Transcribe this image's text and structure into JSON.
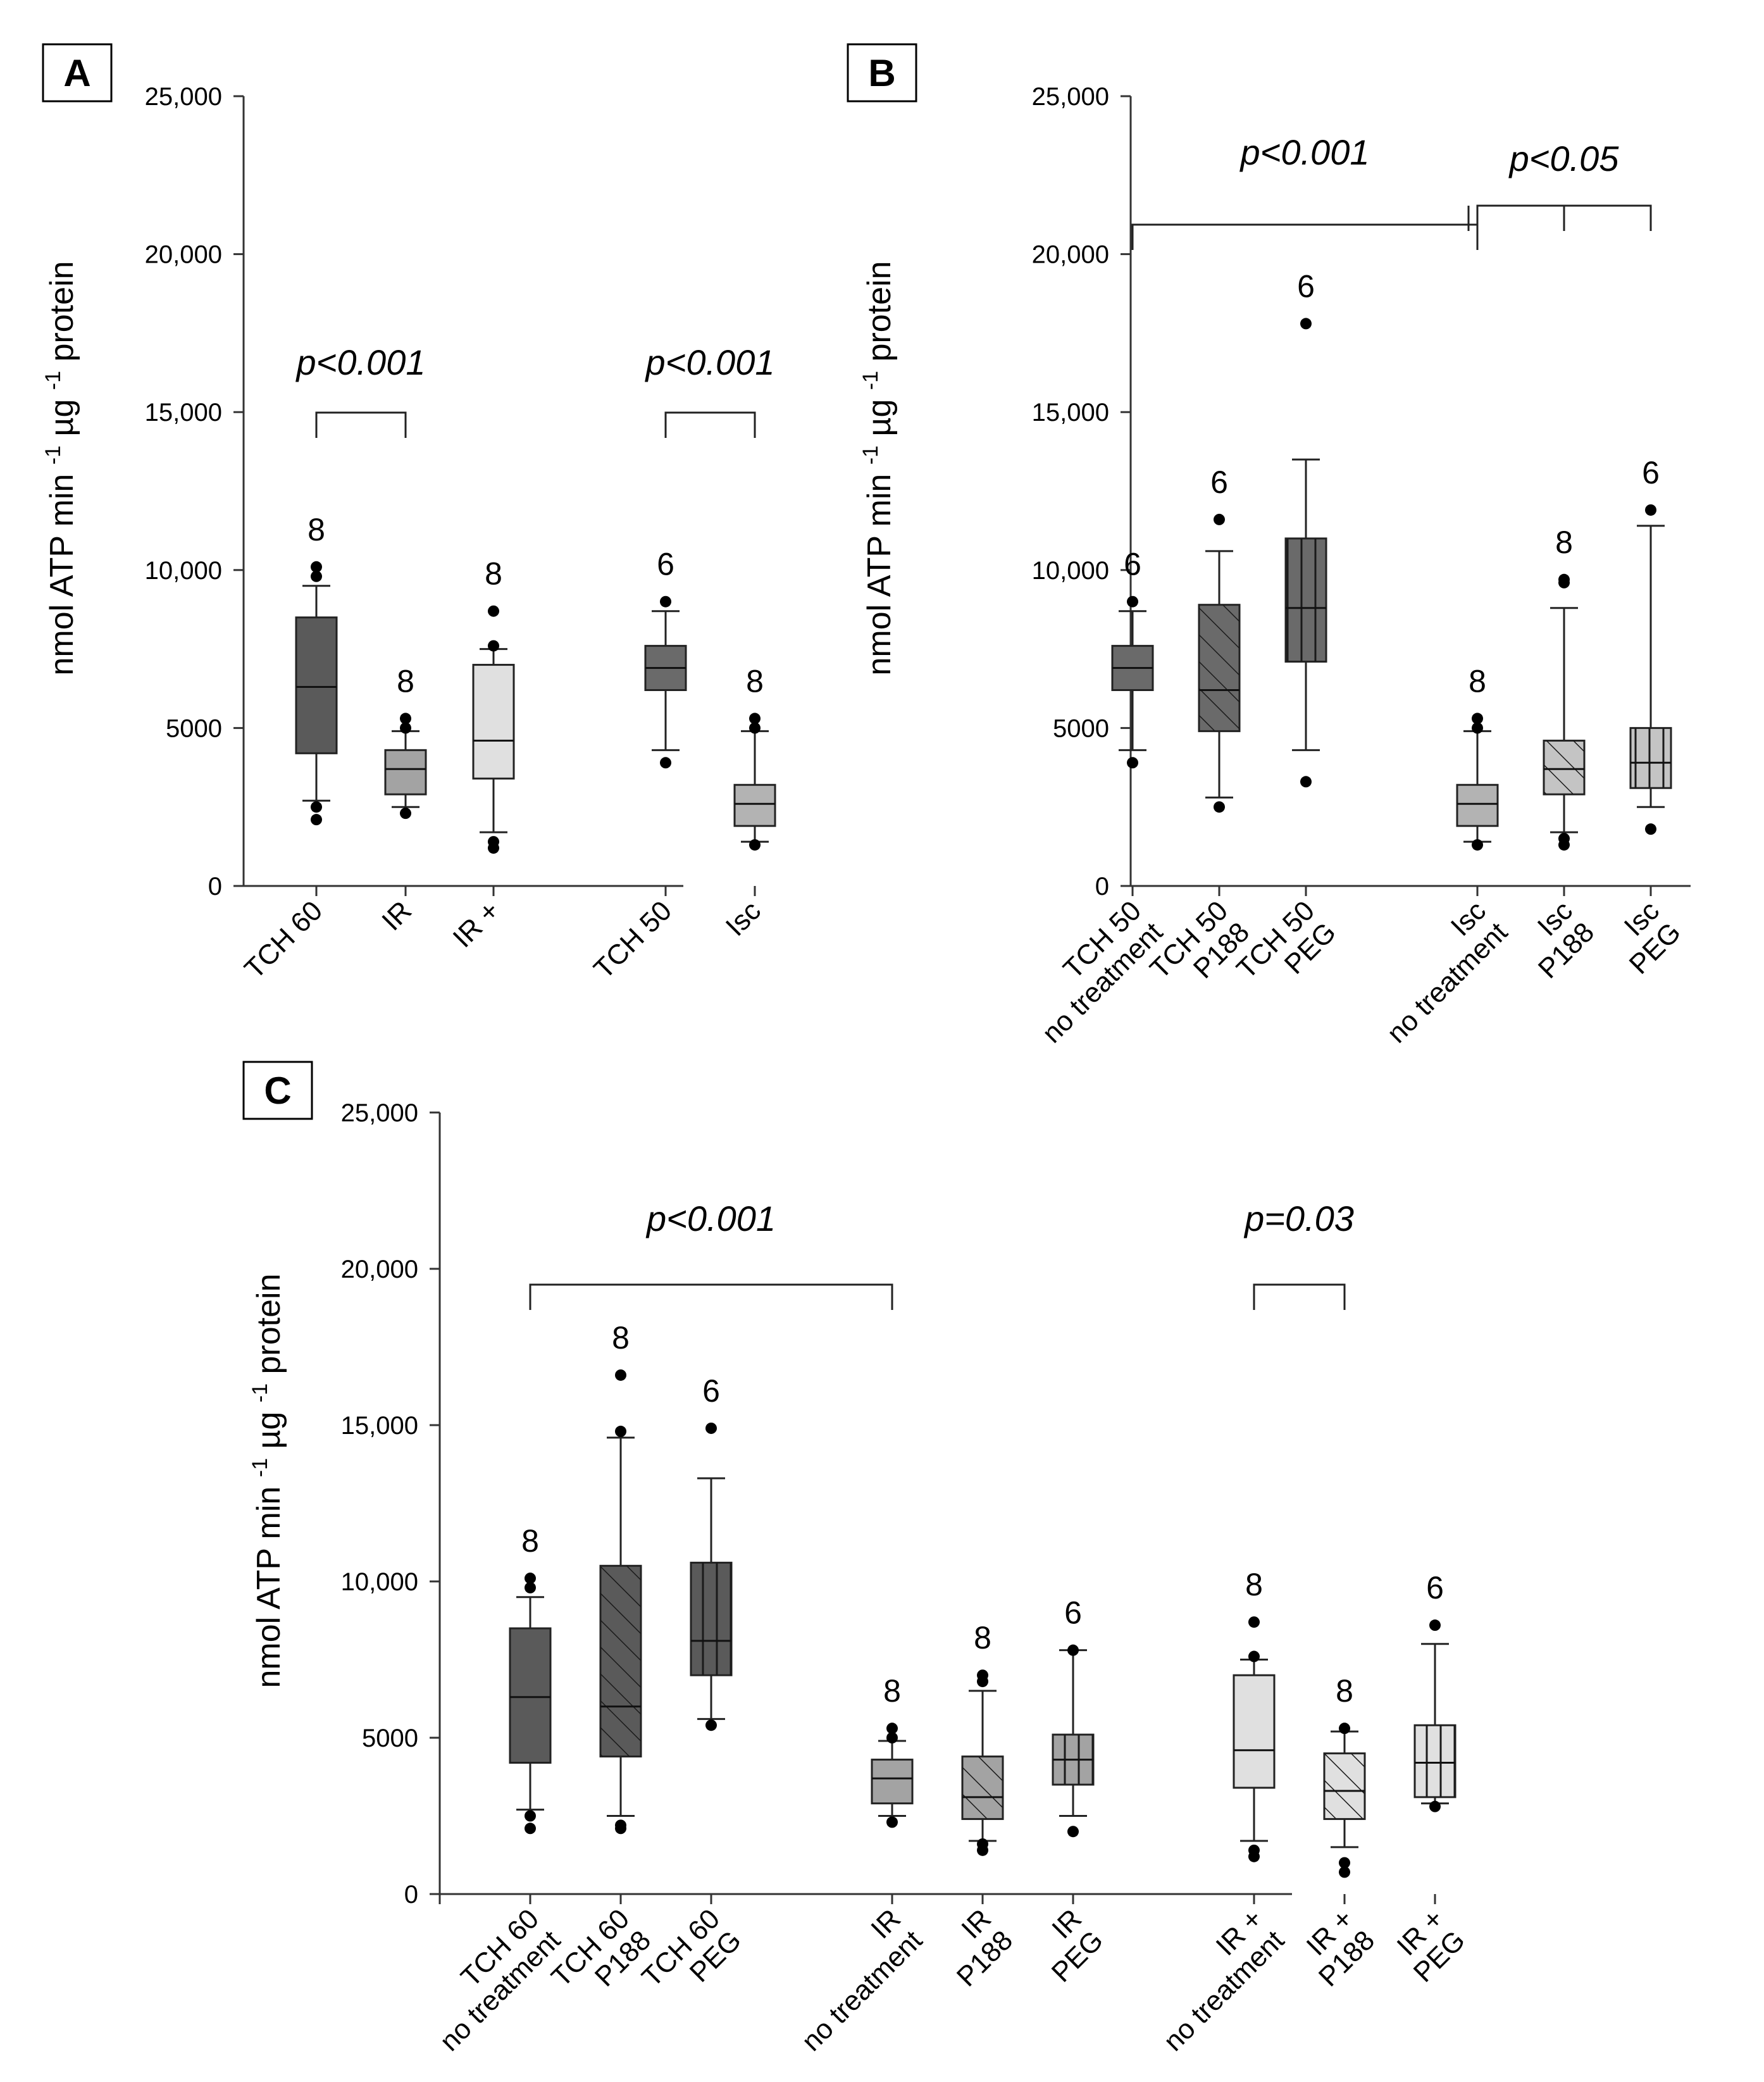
{
  "chart_data": [
    {
      "type": "box",
      "panel": "A",
      "ylabel": "nmol ATP min -1 µg -1 protein",
      "ylim": [
        0,
        25000
      ],
      "yticks": [
        "0",
        "5000",
        "10,000",
        "15,000",
        "20,000",
        "25,000"
      ],
      "groups": [
        {
          "label": "TCH 60",
          "n": "8",
          "fill": "#5a5a5a",
          "pattern": "none",
          "whisker_low": 2700,
          "q1": 4200,
          "median": 6300,
          "q3": 8500,
          "whisker_high": 9500,
          "outliers": [
            2100,
            2500,
            9800,
            10100
          ]
        },
        {
          "label": "IR",
          "n": "8",
          "fill": "#a3a3a3",
          "pattern": "none",
          "whisker_low": 2500,
          "q1": 2900,
          "median": 3700,
          "q3": 4300,
          "whisker_high": 4900,
          "outliers": [
            2300,
            5000,
            5300
          ]
        },
        {
          "label": "IR +",
          "n": "8",
          "fill": "#e0e0e0",
          "pattern": "none",
          "whisker_low": 1700,
          "q1": 3400,
          "median": 4600,
          "q3": 7000,
          "whisker_high": 7500,
          "outliers": [
            1200,
            1400,
            7600,
            8700
          ]
        },
        {
          "label": "TCH 50",
          "n": "6",
          "fill": "#6a6a6a",
          "pattern": "none",
          "whisker_low": 4300,
          "q1": 6200,
          "median": 6900,
          "q3": 7600,
          "whisker_high": 8700,
          "outliers": [
            3900,
            9000
          ]
        },
        {
          "label": "Isc",
          "n": "8",
          "fill": "#b3b3b3",
          "pattern": "none",
          "whisker_low": 1400,
          "q1": 1900,
          "median": 2600,
          "q3": 3200,
          "whisker_high": 4900,
          "outliers": [
            1300,
            5000,
            5300
          ]
        }
      ],
      "significance": [
        {
          "from": 0,
          "to": 1,
          "label": "p<0.001"
        },
        {
          "from": 3,
          "to": 4,
          "label": "p<0.001"
        }
      ]
    },
    {
      "type": "box",
      "panel": "B",
      "ylabel": "nmol ATP min -1 µg -1 protein",
      "ylim": [
        0,
        25000
      ],
      "yticks": [
        "0",
        "5000",
        "10,000",
        "15,000",
        "20,000",
        "25,000"
      ],
      "groups": [
        {
          "label_lines": [
            "TCH 50",
            "no treatment"
          ],
          "n": "6",
          "fill": "#6a6a6a",
          "pattern": "none",
          "whisker_low": 4300,
          "q1": 6200,
          "median": 6900,
          "q3": 7600,
          "whisker_high": 8700,
          "outliers": [
            3900,
            9000
          ]
        },
        {
          "label_lines": [
            "TCH 50",
            "P188"
          ],
          "n": "6",
          "fill": "#6a6a6a",
          "pattern": "diag",
          "whisker_low": 2800,
          "q1": 4900,
          "median": 6200,
          "q3": 8900,
          "whisker_high": 10600,
          "outliers": [
            2500,
            11600
          ]
        },
        {
          "label_lines": [
            "TCH 50",
            "PEG"
          ],
          "n": "6",
          "fill": "#6a6a6a",
          "pattern": "vert",
          "whisker_low": 4300,
          "q1": 7100,
          "median": 8800,
          "q3": 11000,
          "whisker_high": 13500,
          "outliers": [
            3300,
            17800
          ]
        },
        {
          "label_lines": [
            "Isc",
            "no treatment"
          ],
          "n": "8",
          "fill": "#b3b3b3",
          "pattern": "none",
          "whisker_low": 1400,
          "q1": 1900,
          "median": 2600,
          "q3": 3200,
          "whisker_high": 4900,
          "outliers": [
            1300,
            5000,
            5300
          ]
        },
        {
          "label_lines": [
            "Isc",
            "P188"
          ],
          "n": "8",
          "fill": "#c4c4c4",
          "pattern": "diag",
          "whisker_low": 1700,
          "q1": 2900,
          "median": 3700,
          "q3": 4600,
          "whisker_high": 8800,
          "outliers": [
            1300,
            1500,
            9600,
            9700
          ]
        },
        {
          "label_lines": [
            "Isc",
            "PEG"
          ],
          "n": "6",
          "fill": "#c4c4c4",
          "pattern": "vert",
          "whisker_low": 2500,
          "q1": 3100,
          "median": 3900,
          "q3": 5000,
          "whisker_high": 11400,
          "outliers": [
            1800,
            11900
          ]
        }
      ],
      "significance": [
        {
          "from": 0,
          "to": 3,
          "label": "p<0.001"
        },
        {
          "from": 3,
          "to": 4,
          "label": "p<0.05"
        },
        {
          "from": 3,
          "to": 5,
          "label": ""
        }
      ]
    },
    {
      "type": "box",
      "panel": "C",
      "ylabel": "nmol ATP min -1 µg -1 protein",
      "ylim": [
        0,
        25000
      ],
      "yticks": [
        "0",
        "5000",
        "10,000",
        "15,000",
        "20,000",
        "25,000"
      ],
      "groups": [
        {
          "label_lines": [
            "TCH 60",
            "no treatment"
          ],
          "n": "8",
          "fill": "#5a5a5a",
          "pattern": "none",
          "whisker_low": 2700,
          "q1": 4200,
          "median": 6300,
          "q3": 8500,
          "whisker_high": 9500,
          "outliers": [
            2100,
            2500,
            9800,
            10100
          ]
        },
        {
          "label_lines": [
            "TCH 60",
            "P188"
          ],
          "n": "8",
          "fill": "#5a5a5a",
          "pattern": "diag",
          "whisker_low": 2500,
          "q1": 4400,
          "median": 6000,
          "q3": 10500,
          "whisker_high": 14600,
          "outliers": [
            2100,
            2200,
            14800,
            16600
          ]
        },
        {
          "label_lines": [
            "TCH 60",
            "PEG"
          ],
          "n": "6",
          "fill": "#5a5a5a",
          "pattern": "vert",
          "whisker_low": 5600,
          "q1": 7000,
          "median": 8100,
          "q3": 10600,
          "whisker_high": 13300,
          "outliers": [
            5400,
            14900
          ]
        },
        {
          "label_lines": [
            "IR",
            "no treatment"
          ],
          "n": "8",
          "fill": "#a3a3a3",
          "pattern": "none",
          "whisker_low": 2500,
          "q1": 2900,
          "median": 3700,
          "q3": 4300,
          "whisker_high": 4900,
          "outliers": [
            2300,
            5000,
            5300
          ]
        },
        {
          "label_lines": [
            "IR",
            "P188"
          ],
          "n": "8",
          "fill": "#a3a3a3",
          "pattern": "diag",
          "whisker_low": 1700,
          "q1": 2400,
          "median": 3100,
          "q3": 4400,
          "whisker_high": 6500,
          "outliers": [
            1400,
            1600,
            6800,
            7000
          ]
        },
        {
          "label_lines": [
            "IR",
            "PEG"
          ],
          "n": "6",
          "fill": "#a3a3a3",
          "pattern": "vert",
          "whisker_low": 2500,
          "q1": 3500,
          "median": 4300,
          "q3": 5100,
          "whisker_high": 7800,
          "outliers": [
            2000,
            7800
          ]
        },
        {
          "label_lines": [
            "IR +",
            "no treatment"
          ],
          "n": "8",
          "fill": "#e0e0e0",
          "pattern": "none",
          "whisker_low": 1700,
          "q1": 3400,
          "median": 4600,
          "q3": 7000,
          "whisker_high": 7500,
          "outliers": [
            1200,
            1400,
            7600,
            8700
          ]
        },
        {
          "label_lines": [
            "IR +",
            "P188"
          ],
          "n": "8",
          "fill": "#e0e0e0",
          "pattern": "diag",
          "whisker_low": 1500,
          "q1": 2400,
          "median": 3300,
          "q3": 4500,
          "whisker_high": 5200,
          "outliers": [
            700,
            1000,
            5300
          ]
        },
        {
          "label_lines": [
            "IR +",
            "PEG"
          ],
          "n": "6",
          "fill": "#e0e0e0",
          "pattern": "vert",
          "whisker_low": 2900,
          "q1": 3100,
          "median": 4200,
          "q3": 5400,
          "whisker_high": 8000,
          "outliers": [
            2800,
            8600
          ]
        }
      ],
      "significance": [
        {
          "from": 0,
          "to": 3,
          "label": "p<0.001"
        },
        {
          "from": 6,
          "to": 7,
          "label": "p=0.03"
        }
      ]
    }
  ]
}
